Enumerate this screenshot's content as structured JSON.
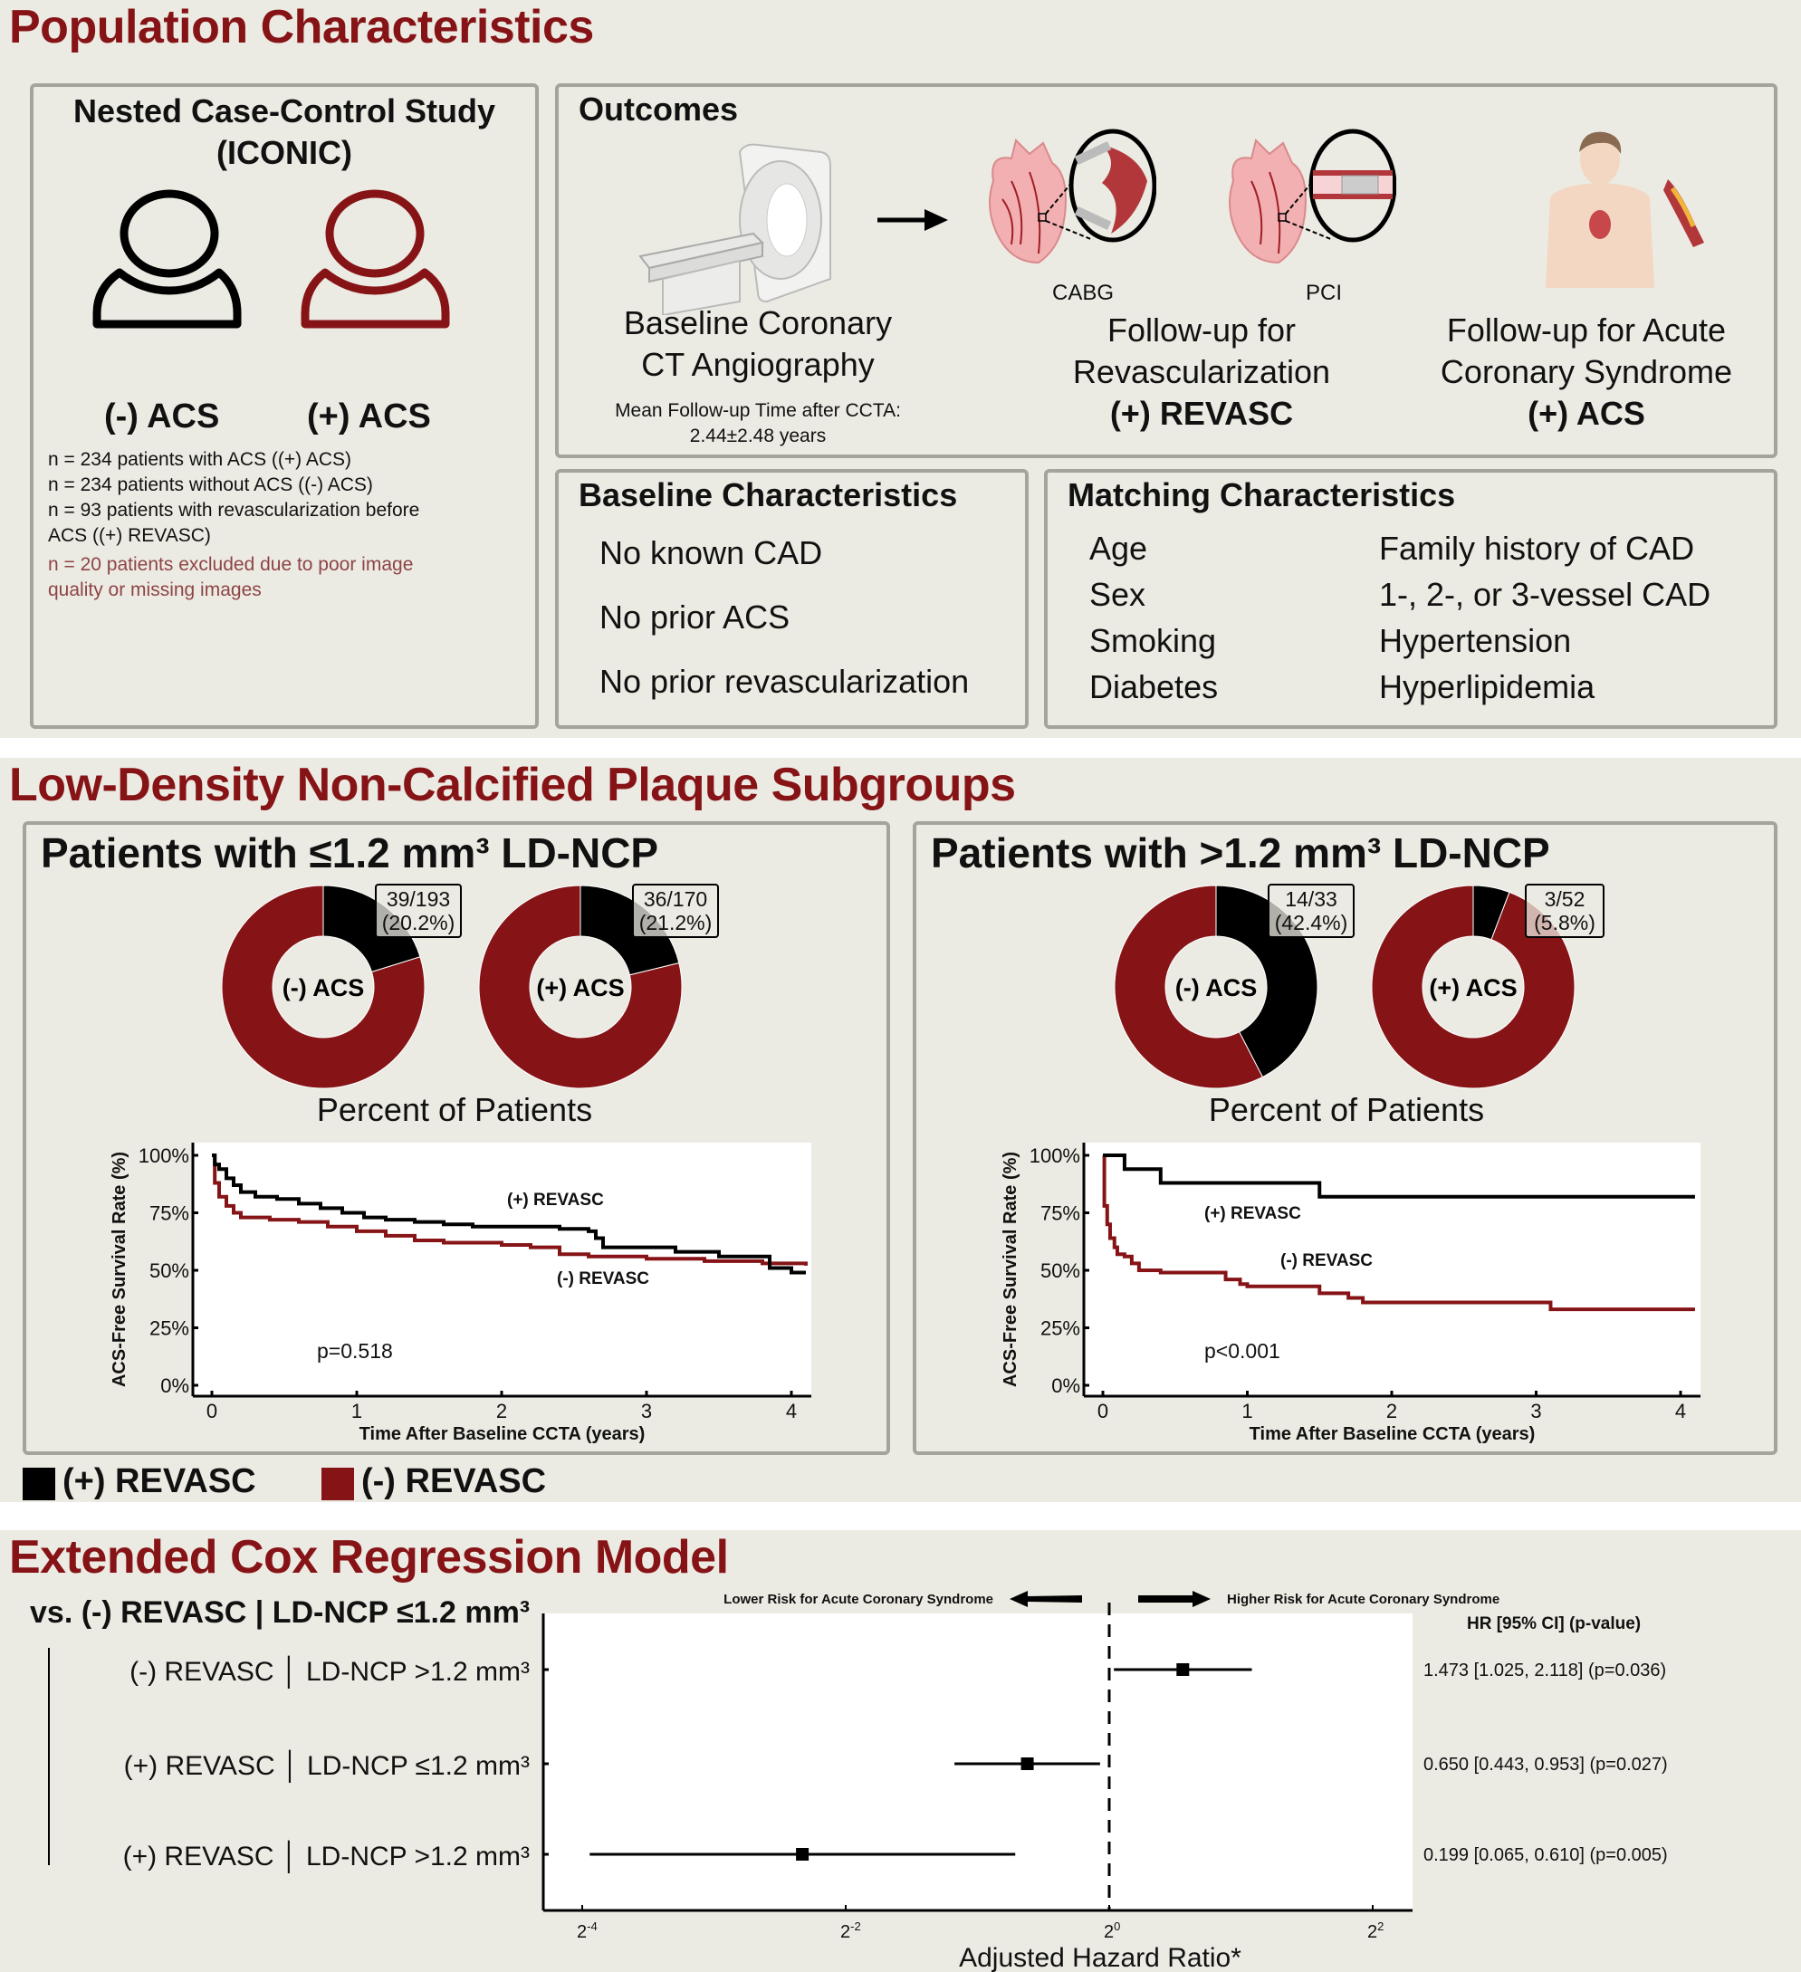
{
  "colors": {
    "accent_red": "#861417",
    "black": "#000000",
    "panel_bg": "#ECEBE3",
    "panel_border": "#A4A49C",
    "excluded_text": "#8E4446"
  },
  "section1": {
    "title": "Population Characteristics",
    "study": {
      "title_line1": "Nested Case-Control Study",
      "title_line2": "(ICONIC)",
      "neg_label": "(-) ACS",
      "pos_label": "(+) ACS",
      "notes": [
        "n = 234 patients with ACS ((+) ACS)",
        "n = 234 patients without ACS ((-) ACS)",
        "n = 93 patients with revascularization before",
        "ACS ((+) REVASC)"
      ],
      "excluded": [
        "n = 20 patients excluded due to poor image",
        "quality or missing images"
      ]
    },
    "outcomes": {
      "title": "Outcomes",
      "baseline_line1": "Baseline Coronary",
      "baseline_line2": "CT Angiography",
      "followup_time_label": "Mean Follow-up Time after CCTA:",
      "followup_time_value": "2.44±2.48 years",
      "cabg_label": "CABG",
      "pci_label": "PCI",
      "revasc_line1": "Follow-up for",
      "revasc_line2": "Revascularization",
      "revasc_tag": "(+) REVASC",
      "acs_line1": "Follow-up for Acute",
      "acs_line2": "Coronary Syndrome",
      "acs_tag": "(+) ACS"
    },
    "baseline": {
      "title": "Baseline Characteristics",
      "items": [
        "No known CAD",
        "No prior ACS",
        "No prior revascularization"
      ]
    },
    "matching": {
      "title": "Matching Characteristics",
      "left": [
        "Age",
        "Sex",
        "Smoking",
        "Diabetes"
      ],
      "right": [
        "Family history of CAD",
        "1-, 2-, or 3-vessel CAD",
        "Hypertension",
        "Hyperlipidemia"
      ]
    }
  },
  "section2": {
    "title": "Low-Density Non-Calcified Plaque Subgroups",
    "legend": [
      {
        "label": "(+) REVASC",
        "color": "#000000"
      },
      {
        "label": "(-) REVASC",
        "color": "#861417"
      }
    ]
  },
  "section3": {
    "title": "Extended Cox Regression Model",
    "reference": "vs. (-) REVASC | LD-NCP ≤1.2 mm³"
  },
  "chart_data": [
    {
      "type": "pie",
      "panel": "Patients with ≤1.2 mm³ LD-NCP",
      "center_label": "(-) ACS",
      "slices": [
        {
          "name": "(+) REVASC",
          "value": 20.2,
          "count": 39,
          "total": 193,
          "label_line1": "39/193",
          "label_line2": "(20.2%)"
        },
        {
          "name": "(-) REVASC",
          "value": 79.8
        }
      ],
      "caption": "Percent of Patients"
    },
    {
      "type": "pie",
      "panel": "Patients with ≤1.2 mm³ LD-NCP",
      "center_label": "(+) ACS",
      "slices": [
        {
          "name": "(+) REVASC",
          "value": 21.2,
          "count": 36,
          "total": 170,
          "label_line1": "36/170",
          "label_line2": "(21.2%)"
        },
        {
          "name": "(-) REVASC",
          "value": 78.8
        }
      ],
      "caption": "Percent of Patients"
    },
    {
      "type": "pie",
      "panel": "Patients with >1.2 mm³ LD-NCP",
      "center_label": "(-) ACS",
      "slices": [
        {
          "name": "(+) REVASC",
          "value": 42.4,
          "count": 14,
          "total": 33,
          "label_line1": "14/33",
          "label_line2": "(42.4%)"
        },
        {
          "name": "(-) REVASC",
          "value": 57.6
        }
      ],
      "caption": "Percent of Patients"
    },
    {
      "type": "pie",
      "panel": "Patients with >1.2 mm³ LD-NCP",
      "center_label": "(+) ACS",
      "slices": [
        {
          "name": "(+) REVASC",
          "value": 5.8,
          "count": 3,
          "total": 52,
          "label_line1": "3/52",
          "label_line2": "(5.8%)"
        },
        {
          "name": "(-) REVASC",
          "value": 94.2
        }
      ],
      "caption": "Percent of Patients"
    },
    {
      "type": "line",
      "panel": "Patients with ≤1.2 mm³ LD-NCP",
      "title": "",
      "xlabel": "Time After Baseline CCTA (years)",
      "ylabel": "ACS-Free Survival Rate (%)",
      "xlim": [
        0,
        4.1
      ],
      "ylim": [
        0,
        100
      ],
      "xticks": [
        "0",
        "1",
        "2",
        "3",
        "4"
      ],
      "yticks": [
        "0%",
        "25%",
        "50%",
        "75%",
        "100%"
      ],
      "annotation": "p=0.518",
      "series": [
        {
          "name": "(+) REVASC",
          "label": "(+) REVASC",
          "color": "#000000",
          "x": [
            0,
            0.02,
            0.05,
            0.1,
            0.15,
            0.2,
            0.3,
            0.45,
            0.6,
            0.75,
            0.9,
            1.05,
            1.2,
            1.4,
            1.6,
            1.8,
            2.0,
            2.2,
            2.4,
            2.6,
            2.65,
            2.7,
            3.0,
            3.2,
            3.5,
            3.85,
            4.0,
            4.1
          ],
          "y": [
            100,
            96,
            94,
            90,
            87,
            84,
            82,
            81,
            79,
            77,
            75,
            73,
            72,
            71,
            70,
            69,
            69,
            69,
            68,
            67,
            64,
            60,
            60,
            58,
            56,
            51,
            49,
            49
          ]
        },
        {
          "name": "(-) REVASC",
          "label": "(-) REVASC",
          "color": "#861417",
          "x": [
            0,
            0.02,
            0.05,
            0.1,
            0.15,
            0.2,
            0.4,
            0.6,
            0.8,
            1.0,
            1.2,
            1.4,
            1.6,
            1.8,
            2.0,
            2.2,
            2.3,
            2.4,
            2.6,
            3.0,
            3.4,
            3.8,
            4.1
          ],
          "y": [
            100,
            88,
            82,
            78,
            75,
            73,
            72,
            71,
            69,
            67,
            65,
            63,
            62,
            62,
            61,
            60,
            60,
            57,
            56,
            55,
            54,
            53,
            52
          ]
        }
      ]
    },
    {
      "type": "line",
      "panel": "Patients with >1.2 mm³ LD-NCP",
      "title": "",
      "xlabel": "Time After Baseline CCTA (years)",
      "ylabel": "ACS-Free Survival Rate (%)",
      "xlim": [
        0,
        4.1
      ],
      "ylim": [
        0,
        100
      ],
      "xticks": [
        "0",
        "1",
        "2",
        "3",
        "4"
      ],
      "yticks": [
        "0%",
        "25%",
        "50%",
        "75%",
        "100%"
      ],
      "annotation": "p<0.001",
      "series": [
        {
          "name": "(+) REVASC",
          "label": "(+) REVASC",
          "color": "#000000",
          "x": [
            0,
            0.15,
            0.4,
            1.5,
            4.1
          ],
          "y": [
            100,
            94,
            88,
            82,
            82
          ]
        },
        {
          "name": "(-) REVASC",
          "label": "(-) REVASC",
          "color": "#861417",
          "x": [
            0,
            0.01,
            0.03,
            0.05,
            0.08,
            0.1,
            0.15,
            0.2,
            0.25,
            0.4,
            0.85,
            0.95,
            1.0,
            1.5,
            1.7,
            1.8,
            3.1,
            4.1
          ],
          "y": [
            100,
            78,
            70,
            64,
            60,
            57,
            56,
            53,
            50,
            49,
            46,
            44,
            43,
            40,
            38,
            36,
            33,
            33
          ]
        }
      ]
    },
    {
      "type": "scatter",
      "subtype": "forest",
      "title": "Extended Cox Regression Model",
      "reference_group": "vs. (-) REVASC | LD-NCP ≤1.2 mm³",
      "xlabel": "Adjusted Hazard Ratio*",
      "xscale": "log2",
      "xlim_log2": [
        -4.3,
        2.3
      ],
      "xticks": [
        {
          "base": "2",
          "exp": "-4"
        },
        {
          "base": "2",
          "exp": "-2"
        },
        {
          "base": "2",
          "exp": "0"
        },
        {
          "base": "2",
          "exp": "2"
        }
      ],
      "reference_line": 1,
      "direction_left": "Lower Risk for Acute Coronary Syndrome",
      "direction_right": "Higher Risk for Acute Coronary Syndrome",
      "table_header": "HR [95% CI] (p-value)",
      "rows": [
        {
          "group": "(-) REVASC",
          "ldncp": "LD-NCP >1.2 mm³",
          "hr": 1.473,
          "lo": 1.025,
          "hi": 2.118,
          "text": "1.473 [1.025, 2.118] (p=0.036)"
        },
        {
          "group": "(+) REVASC",
          "ldncp": "LD-NCP ≤1.2 mm³",
          "hr": 0.65,
          "lo": 0.443,
          "hi": 0.953,
          "text": "0.650 [0.443, 0.953] (p=0.027)"
        },
        {
          "group": "(+) REVASC",
          "ldncp": "LD-NCP >1.2 mm³",
          "hr": 0.199,
          "lo": 0.065,
          "hi": 0.61,
          "text": "0.199 [0.065, 0.610] (p=0.005)"
        }
      ]
    }
  ],
  "panels": {
    "left": {
      "title": "Patients with ≤1.2 mm³ LD-NCP"
    },
    "right": {
      "title": "Patients with >1.2 mm³ LD-NCP"
    }
  }
}
